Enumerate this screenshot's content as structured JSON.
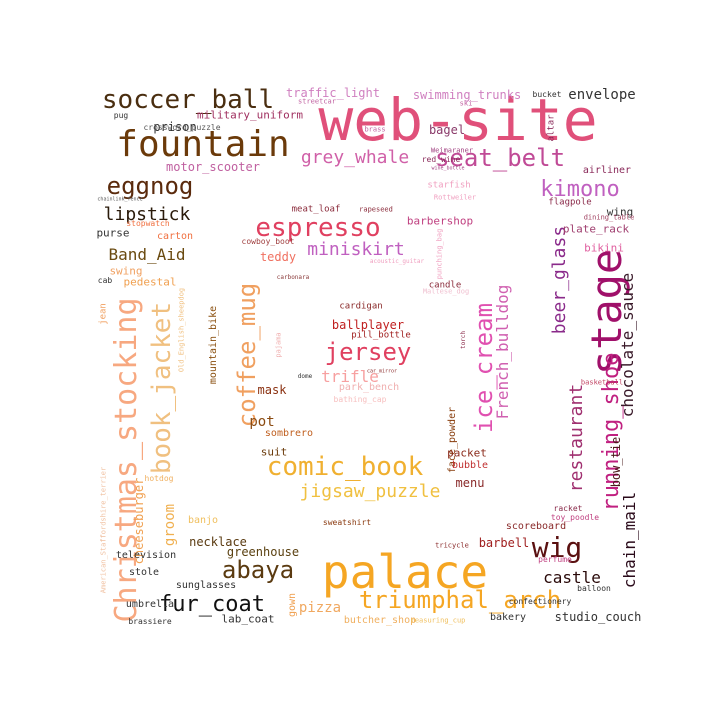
{
  "cloud": {
    "words": [
      {
        "text": "web-site",
        "color": "#e0507a"
      },
      {
        "text": "palace",
        "color": "#f5a623"
      },
      {
        "text": "fountain",
        "color": "#6b3a0a"
      },
      {
        "text": "soccer_ball",
        "color": "#4a2e10"
      },
      {
        "text": "stage",
        "color": "#a0106a"
      },
      {
        "text": "seat_belt",
        "color": "#c04a96"
      },
      {
        "text": "kimono",
        "color": "#c060c0"
      },
      {
        "text": "eggnog",
        "color": "#5a2a0c"
      },
      {
        "text": "grey_whale",
        "color": "#d060a8"
      },
      {
        "text": "espresso",
        "color": "#e04060"
      },
      {
        "text": "miniskirt",
        "color": "#c060c0"
      },
      {
        "text": "jersey",
        "color": "#e04060"
      },
      {
        "text": "comic_book",
        "color": "#f0b030"
      },
      {
        "text": "jigsaw_puzzle",
        "color": "#f0c040"
      },
      {
        "text": "triumphal_arch",
        "color": "#f5a623"
      },
      {
        "text": "fur_coat",
        "color": "#111111"
      },
      {
        "text": "abaya",
        "color": "#5a3a10"
      },
      {
        "text": "wig",
        "color": "#5a1010"
      },
      {
        "text": "Christmas_stocking",
        "color": "#f7a880"
      },
      {
        "text": "book_jacket",
        "color": "#f0c080"
      },
      {
        "text": "coffee_mug",
        "color": "#f0a060"
      },
      {
        "text": "ice_cream",
        "color": "#e050b0"
      },
      {
        "text": "French_bulldog",
        "color": "#d060b0"
      },
      {
        "text": "beer_glass",
        "color": "#8a2a8a"
      },
      {
        "text": "running_shoe",
        "color": "#c02080"
      },
      {
        "text": "restaurant",
        "color": "#a03070"
      },
      {
        "text": "chocolate_sauce",
        "color": "#3a1a2a"
      },
      {
        "text": "chain_mail",
        "color": "#2a0a1a"
      },
      {
        "text": "lipstick",
        "color": "#2a1a0a"
      },
      {
        "text": "Band_Aid",
        "color": "#6a4a10"
      },
      {
        "text": "castle",
        "color": "#2a0a0a"
      },
      {
        "text": "pizza",
        "color": "#f0a860"
      },
      {
        "text": "trifle",
        "color": "#f7a0a0"
      },
      {
        "text": "ballplayer",
        "color": "#c02020"
      },
      {
        "text": "teddy",
        "color": "#f07060"
      },
      {
        "text": "mask",
        "color": "#8a3010"
      },
      {
        "text": "pot",
        "color": "#8a4a10"
      },
      {
        "text": "menu",
        "color": "#8a2a2a"
      },
      {
        "text": "barbell",
        "color": "#a02020"
      },
      {
        "text": "envelope",
        "color": "#333333"
      },
      {
        "text": "prison",
        "color": "#333333"
      },
      {
        "text": "bagel",
        "color": "#8a3a6a"
      },
      {
        "text": "traffic_light",
        "color": "#d080c0"
      },
      {
        "text": "swimming_trunks",
        "color": "#d080c0"
      },
      {
        "text": "motor_scooter",
        "color": "#c060a0"
      },
      {
        "text": "military_uniform",
        "color": "#a03060"
      },
      {
        "text": "crossword_puzzle",
        "color": "#555555"
      },
      {
        "text": "barbershop",
        "color": "#c04080"
      },
      {
        "text": "airliner",
        "color": "#8a2a5a"
      },
      {
        "text": "flagpole",
        "color": "#8a2a4a"
      },
      {
        "text": "wing",
        "color": "#333333"
      },
      {
        "text": "dining_table",
        "color": "#a04060"
      },
      {
        "text": "plate_rack",
        "color": "#a04070"
      },
      {
        "text": "bikini",
        "color": "#e060a0"
      },
      {
        "text": "purse",
        "color": "#333333"
      },
      {
        "text": "carton",
        "color": "#f07040"
      },
      {
        "text": "stopwatch",
        "color": "#f07040"
      },
      {
        "text": "swing",
        "color": "#f0a060"
      },
      {
        "text": "pedestal",
        "color": "#f0a050"
      },
      {
        "text": "cab",
        "color": "#333333"
      },
      {
        "text": "jean",
        "color": "#f0a060"
      },
      {
        "text": "mountain_bike",
        "color": "#8a5010"
      },
      {
        "text": "cardigan",
        "color": "#8a2a2a"
      },
      {
        "text": "pill_bottle",
        "color": "#a02020"
      },
      {
        "text": "park_bench",
        "color": "#f0b0b0"
      },
      {
        "text": "bathing_cap",
        "color": "#f7c0c0"
      },
      {
        "text": "sombrero",
        "color": "#c06020"
      },
      {
        "text": "suit",
        "color": "#6a3a0a"
      },
      {
        "text": "face_powder",
        "color": "#8a4010"
      },
      {
        "text": "packet",
        "color": "#8a2a1a"
      },
      {
        "text": "bubble",
        "color": "#c03030"
      },
      {
        "text": "candle",
        "color": "#8a2a3a"
      },
      {
        "text": "meat_loaf",
        "color": "#8a2a3a"
      },
      {
        "text": "rapeseed",
        "color": "#8a2a3a"
      },
      {
        "text": "cowboy_boot",
        "color": "#a04040"
      },
      {
        "text": "groom",
        "color": "#f0b050"
      },
      {
        "text": "cheeseburger",
        "color": "#f0a050"
      },
      {
        "text": "banjo",
        "color": "#f0c060"
      },
      {
        "text": "necklace",
        "color": "#5a3a10"
      },
      {
        "text": "greenhouse",
        "color": "#5a4010"
      },
      {
        "text": "television",
        "color": "#333333"
      },
      {
        "text": "stole",
        "color": "#333333"
      },
      {
        "text": "sunglasses",
        "color": "#333333"
      },
      {
        "text": "umbrella",
        "color": "#333333"
      },
      {
        "text": "brassiere",
        "color": "#333333"
      },
      {
        "text": "lab_coat",
        "color": "#333333"
      },
      {
        "text": "gown",
        "color": "#f0a050"
      },
      {
        "text": "butcher_shop",
        "color": "#f0b060"
      },
      {
        "text": "bakery",
        "color": "#333333"
      },
      {
        "text": "studio_couch",
        "color": "#333333"
      },
      {
        "text": "sweatshirt",
        "color": "#8a3a10"
      },
      {
        "text": "scoreboard",
        "color": "#8a2a2a"
      },
      {
        "text": "racket",
        "color": "#8a2a4a"
      },
      {
        "text": "toy_poodle",
        "color": "#c04080"
      },
      {
        "text": "perfume",
        "color": "#c04080"
      },
      {
        "text": "confectionery",
        "color": "#333333"
      },
      {
        "text": "bow_tie",
        "color": "#4a1a1a"
      },
      {
        "text": "basketball",
        "color": "#c04060"
      },
      {
        "text": "bucket",
        "color": "#333333"
      },
      {
        "text": "altar",
        "color": "#8a2a5a"
      },
      {
        "text": "red_wine",
        "color": "#8a2a5a"
      },
      {
        "text": "Weimaraner",
        "color": "#a04080"
      },
      {
        "text": "wine_bottle",
        "color": "#a04080"
      },
      {
        "text": "brass",
        "color": "#c060a0"
      },
      {
        "text": "starfish",
        "color": "#f0a0c0"
      },
      {
        "text": "Rottweiler",
        "color": "#f0a0c0"
      },
      {
        "text": "streetcar",
        "color": "#c060a0"
      },
      {
        "text": "ski",
        "color": "#c060a0"
      },
      {
        "text": "pug",
        "color": "#333333"
      },
      {
        "text": "American_Staffordshire_terrier",
        "color": "#f0c0a0"
      },
      {
        "text": "chainlink_fence",
        "color": "#555555"
      },
      {
        "text": "hotdog",
        "color": "#f0b060"
      },
      {
        "text": "dome",
        "color": "#333333"
      },
      {
        "text": "torch",
        "color": "#8a2a4a"
      },
      {
        "text": "punching_bag",
        "color": "#f0a0c0"
      },
      {
        "text": "acoustic_guitar",
        "color": "#f0a0c0"
      },
      {
        "text": "Maltese_dog",
        "color": "#f0c0d0"
      },
      {
        "text": "carbonara",
        "color": "#8a3a3a"
      },
      {
        "text": "pajama",
        "color": "#f0b0b0"
      },
      {
        "text": "measuring_cup",
        "color": "#f0c060"
      },
      {
        "text": "tricycle",
        "color": "#8a2a2a"
      },
      {
        "text": "balloon",
        "color": "#333333"
      },
      {
        "text": "car_mirror",
        "color": "#8a2a2a"
      },
      {
        "text": "Old_English_sheepdog",
        "color": "#f0c080"
      }
    ]
  }
}
